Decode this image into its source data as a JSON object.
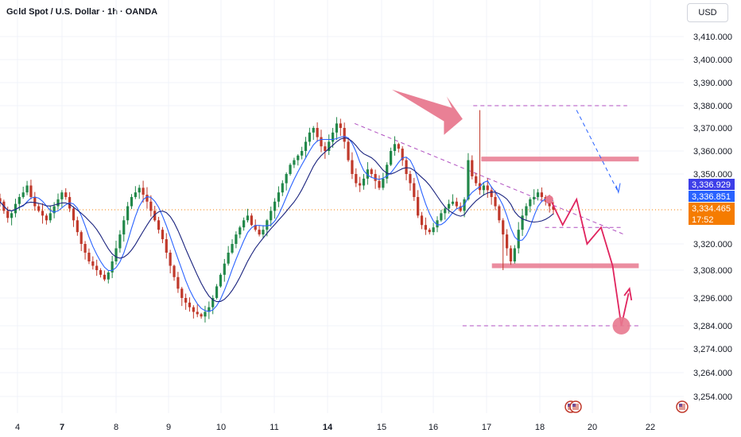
{
  "header": {
    "title": "Gold Spot / U.S. Dollar · 1h · OANDA",
    "currency": "USD"
  },
  "colors": {
    "background": "#ffffff",
    "bull": "#22884a",
    "bear": "#c0392b",
    "ma_fast": "#2962ff",
    "ma_slow": "#1a237e",
    "zone": "#e8798f",
    "drawing": "#e0245e",
    "dashed_magenta": "#b04fc0",
    "dashed_blue": "#2962ff",
    "tag_blue_dark": "#3d3ee8",
    "tag_blue": "#2962ff",
    "tag_orange": "#f57c00"
  },
  "price_tags": [
    {
      "label": "3,336.929",
      "value": 3336.929,
      "color": "#3d3ee8"
    },
    {
      "label": "3,336.851",
      "value": 3336.851,
      "color": "#2962ff"
    },
    {
      "label": "3,334.465",
      "value": 3334.465,
      "color": "#f57c00"
    },
    {
      "label": "17:52",
      "value": 3330.3,
      "color": "#f57c00"
    }
  ],
  "chart_data": {
    "type": "candlestick",
    "title": "Gold Spot / U.S. Dollar · 1h · OANDA",
    "y_unit": "USD",
    "ylim": [
      3250,
      3418
    ],
    "y_axis_type": "piecewise",
    "y_scale_points": [
      [
        3410,
        46
      ],
      [
        3400,
        75
      ],
      [
        3390,
        104
      ],
      [
        3380,
        133
      ],
      [
        3370,
        161
      ],
      [
        3360,
        190
      ],
      [
        3350,
        219
      ],
      [
        3334.465,
        264
      ],
      [
        3320,
        307
      ],
      [
        3308,
        340
      ],
      [
        3296,
        375
      ],
      [
        3284,
        410
      ],
      [
        3274,
        439
      ],
      [
        3264,
        469
      ],
      [
        3254,
        499
      ]
    ],
    "y_ticks": [
      "3,410.000",
      "3,400.000",
      "3,390.000",
      "3,380.000",
      "3,370.000",
      "3,360.000",
      "3,350.000",
      "3,320.000",
      "3,308.000",
      "3,296.000",
      "3,284.000",
      "3,274.000",
      "3,264.000",
      "3,254.000"
    ],
    "y_tick_values": [
      3410,
      3400,
      3390,
      3380,
      3370,
      3360,
      3350,
      3320,
      3308,
      3296,
      3284,
      3274,
      3264,
      3254
    ],
    "x_axis": "date (day of month, hourly bars)",
    "x_ticks": [
      "4",
      "7",
      "8",
      "9",
      "10",
      "11",
      "14",
      "15",
      "16",
      "17",
      "18",
      "20",
      "22"
    ],
    "x_tick_positions": [
      22,
      78,
      146,
      212,
      278,
      345,
      412,
      480,
      545,
      612,
      679,
      745,
      818
    ],
    "x_tick_bold": [
      "7",
      "14"
    ],
    "current_price": 3334.465,
    "countdown": "17:52",
    "close_series_approx": [
      3338,
      3334,
      3331,
      3333,
      3337,
      3340,
      3342,
      3345,
      3340,
      3336,
      3334,
      3332,
      3330,
      3333,
      3336,
      3339,
      3342,
      3340,
      3335,
      3330,
      3325,
      3320,
      3316,
      3312,
      3310,
      3308,
      3306,
      3304,
      3307,
      3312,
      3318,
      3324,
      3330,
      3336,
      3340,
      3342,
      3344,
      3341,
      3338,
      3334,
      3330,
      3326,
      3322,
      3316,
      3310,
      3305,
      3300,
      3296,
      3294,
      3292,
      3290,
      3289,
      3288,
      3290,
      3292,
      3296,
      3301,
      3306,
      3311,
      3316,
      3320,
      3324,
      3327,
      3330,
      3332,
      3328,
      3326,
      3324,
      3326,
      3330,
      3334,
      3338,
      3342,
      3346,
      3350,
      3354,
      3356,
      3358,
      3360,
      3364,
      3368,
      3370,
      3366,
      3362,
      3360,
      3364,
      3368,
      3372,
      3370,
      3364,
      3356,
      3350,
      3346,
      3345,
      3348,
      3352,
      3350,
      3347,
      3344,
      3348,
      3354,
      3360,
      3363,
      3361,
      3356,
      3350,
      3346,
      3340,
      3332,
      3328,
      3326,
      3325,
      3327,
      3330,
      3333,
      3335,
      3337,
      3338,
      3336,
      3334,
      3339,
      3356,
      3349,
      3346,
      3343,
      3345,
      3343,
      3340,
      3336,
      3330,
      3324,
      3318,
      3312,
      3318,
      3326,
      3332,
      3336,
      3339,
      3340,
      3342,
      3340,
      3338,
      3336,
      3334.5
    ],
    "moving_averages": [
      {
        "name": "MA fast",
        "color": "#2962ff"
      },
      {
        "name": "MA slow",
        "color": "#1a237e"
      }
    ],
    "horizontal_zones": [
      {
        "price": 3356.5,
        "from_day": "16.9",
        "to_day": "21.6"
      },
      {
        "price": 3310,
        "from_day": "17.1",
        "to_day": "21.6"
      }
    ],
    "dashed_levels": [
      {
        "price": 3380,
        "color": "magenta"
      },
      {
        "price": 3327,
        "color": "magenta"
      },
      {
        "price": 3284,
        "color": "magenta"
      }
    ],
    "projected_path": [
      3339,
      3328,
      3339,
      3320,
      3327,
      3310,
      3284,
      3298
    ],
    "annotations": [
      "arrow pointing to spike high",
      "down-arrow projection",
      "target circle at 3,284",
      "upward bounce arrow"
    ]
  }
}
